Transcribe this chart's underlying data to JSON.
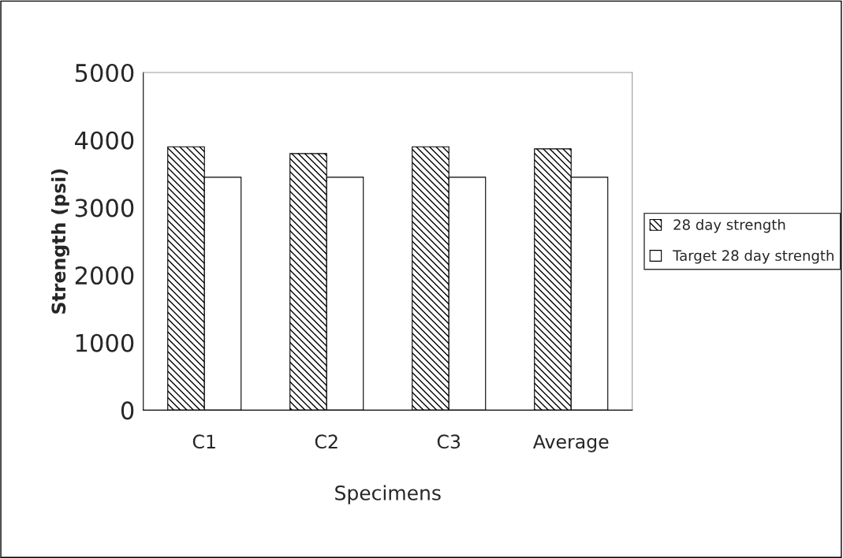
{
  "chart_data": {
    "type": "bar",
    "xlabel": "Specimens",
    "ylabel": "Strength (psi)",
    "categories": [
      "C1",
      "C2",
      "C3",
      "Average"
    ],
    "series": [
      {
        "name": "28 day strength",
        "color": "#000000",
        "values": [
          3900,
          3800,
          3900,
          3870
        ]
      },
      {
        "name": "Target 28 day strength",
        "color": "#ffffff",
        "values": [
          3450,
          3450,
          3450,
          3450
        ]
      }
    ],
    "ylim": [
      0,
      5000
    ],
    "yticks": [
      0,
      1000,
      2000,
      3000,
      4000,
      5000
    ],
    "grid": false,
    "legend": "right"
  }
}
